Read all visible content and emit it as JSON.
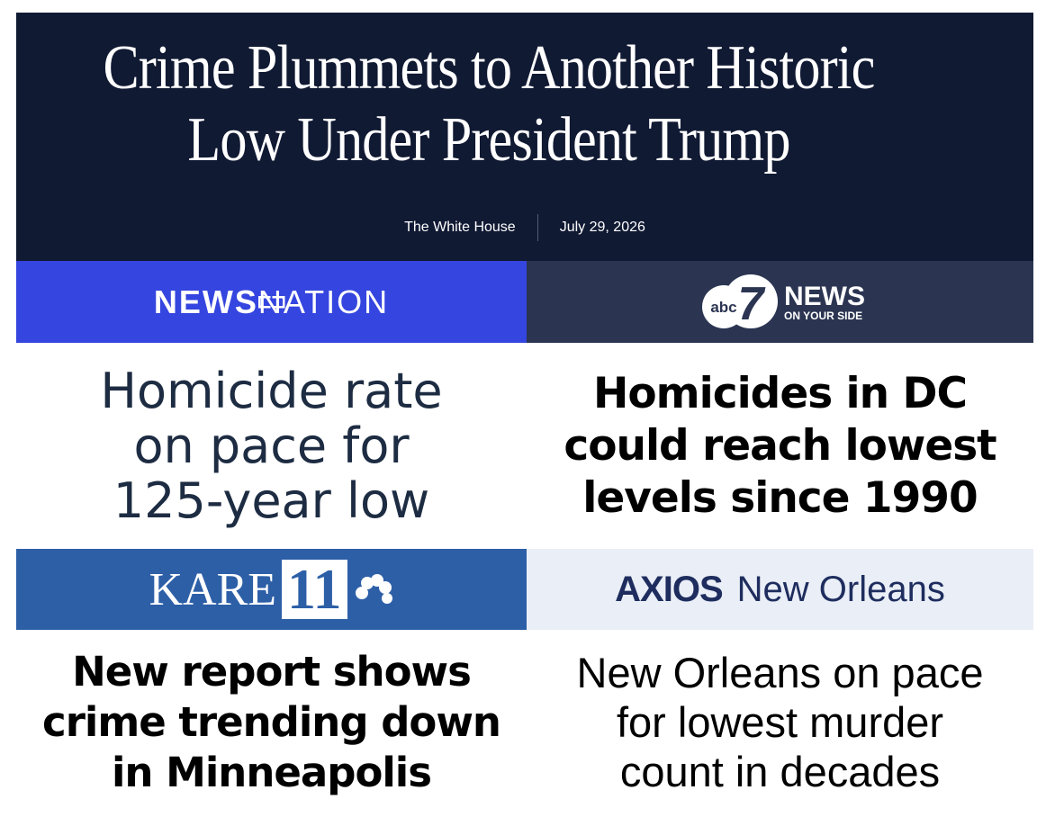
{
  "header": {
    "title": [
      "Crime Plummets to Another Historic",
      "Low Under President Trump"
    ],
    "source": "The White House",
    "date": "July 29, 2026"
  },
  "cards": [
    {
      "logo": {
        "bold": "NEWS",
        "regular": "NATION"
      },
      "headline": [
        "Homicide rate",
        "on pace for",
        "125-year low"
      ]
    },
    {
      "logo": {
        "mark": "abc",
        "number": "7",
        "bold": "NEWS",
        "tagline": "ON YOUR SIDE"
      },
      "headline": [
        "Homicides in DC",
        "could reach lowest",
        "levels since 1990"
      ]
    },
    {
      "logo": {
        "bold": "KARE",
        "number": "11"
      },
      "headline": [
        "New report shows",
        "crime trending down",
        "in Minneapolis"
      ]
    },
    {
      "logo": {
        "bold": "AXIOS",
        "regular": "New Orleans"
      },
      "headline": [
        "New Orleans on pace",
        "for lowest murder",
        "count in decades"
      ]
    }
  ]
}
